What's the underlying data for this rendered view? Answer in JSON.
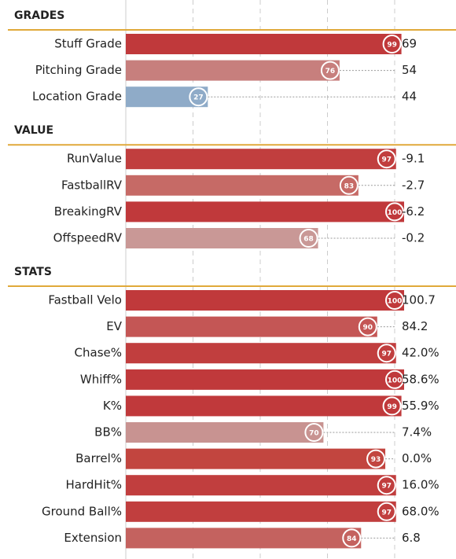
{
  "chart_data": {
    "type": "bar",
    "xlim": [
      0,
      100
    ],
    "xticks": [
      0,
      25,
      50,
      75,
      100
    ],
    "grid": true,
    "sections": [
      {
        "title": "GRADES",
        "categories": [
          "Stuff Grade",
          "Pitching Grade",
          "Location Grade"
        ],
        "values": [
          99,
          76,
          27
        ],
        "stats": [
          "69",
          "54",
          "44"
        ],
        "colors": [
          "#c0393b",
          "#c77f7d",
          "#8fabc8"
        ]
      },
      {
        "title": "VALUE",
        "categories": [
          "RunValue",
          "FastballRV",
          "BreakingRV",
          "OffspeedRV"
        ],
        "values": [
          97,
          83,
          100,
          68
        ],
        "stats": [
          "-9.1",
          "-2.7",
          "-6.2",
          "-0.2"
        ],
        "colors": [
          "#c13e3e",
          "#c66a66",
          "#c0393b",
          "#c99896"
        ]
      },
      {
        "title": "STATS",
        "categories": [
          "Fastball Velo",
          "EV",
          "Chase%",
          "Whiff%",
          "K%",
          "BB%",
          "Barrel%",
          "HardHit%",
          "Ground Ball%",
          "Extension"
        ],
        "values": [
          100,
          90,
          97,
          100,
          99,
          70,
          93,
          97,
          97,
          84
        ],
        "stats": [
          "100.7",
          "84.2",
          "42.0%",
          "58.6%",
          "55.9%",
          "7.4%",
          "0.0%",
          "16.0%",
          "68.0%",
          "6.8"
        ],
        "colors": [
          "#c0393b",
          "#c45655",
          "#c13e3e",
          "#c0393b",
          "#c0393b",
          "#c89391",
          "#c2453f",
          "#c13e3e",
          "#c13e3e",
          "#c4625f"
        ]
      }
    ]
  }
}
